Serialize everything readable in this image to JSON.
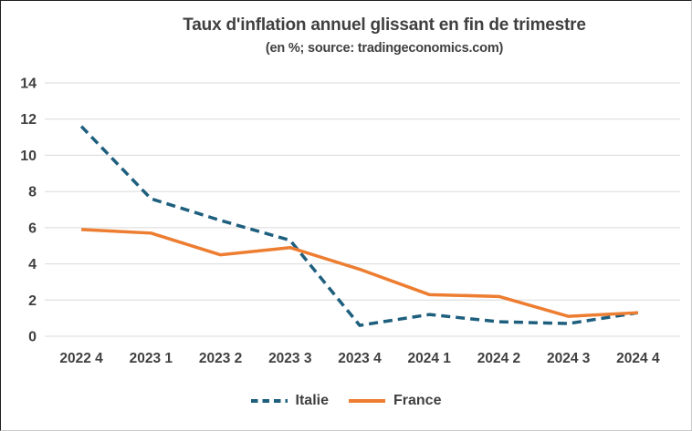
{
  "chart_data": {
    "type": "line",
    "title": "Taux d'inflation annuel glissant en fin de trimestre",
    "subtitle": "(en %; source: tradingeconomics.com)",
    "categories": [
      "2022 4",
      "2023 1",
      "2023 2",
      "2023 3",
      "2023 4",
      "2024 1",
      "2024 2",
      "2024 3",
      "2024 4"
    ],
    "series": [
      {
        "name": "Italie",
        "style": "dashed",
        "color": "#1e5f7e",
        "values": [
          11.6,
          7.6,
          6.4,
          5.3,
          0.6,
          1.2,
          0.8,
          0.7,
          1.3
        ]
      },
      {
        "name": "France",
        "style": "solid",
        "color": "#ed7d31",
        "values": [
          5.9,
          5.7,
          4.5,
          4.9,
          3.7,
          2.3,
          2.2,
          1.1,
          1.3
        ]
      }
    ],
    "xlabel": "",
    "ylabel": "",
    "ylim": [
      0,
      14
    ],
    "yticks": [
      0,
      2,
      4,
      6,
      8,
      10,
      12,
      14
    ],
    "grid": true,
    "legend_position": "bottom",
    "colors": {
      "text": "#404040",
      "grid": "#d9d9d9",
      "background": "#ffffff"
    }
  }
}
